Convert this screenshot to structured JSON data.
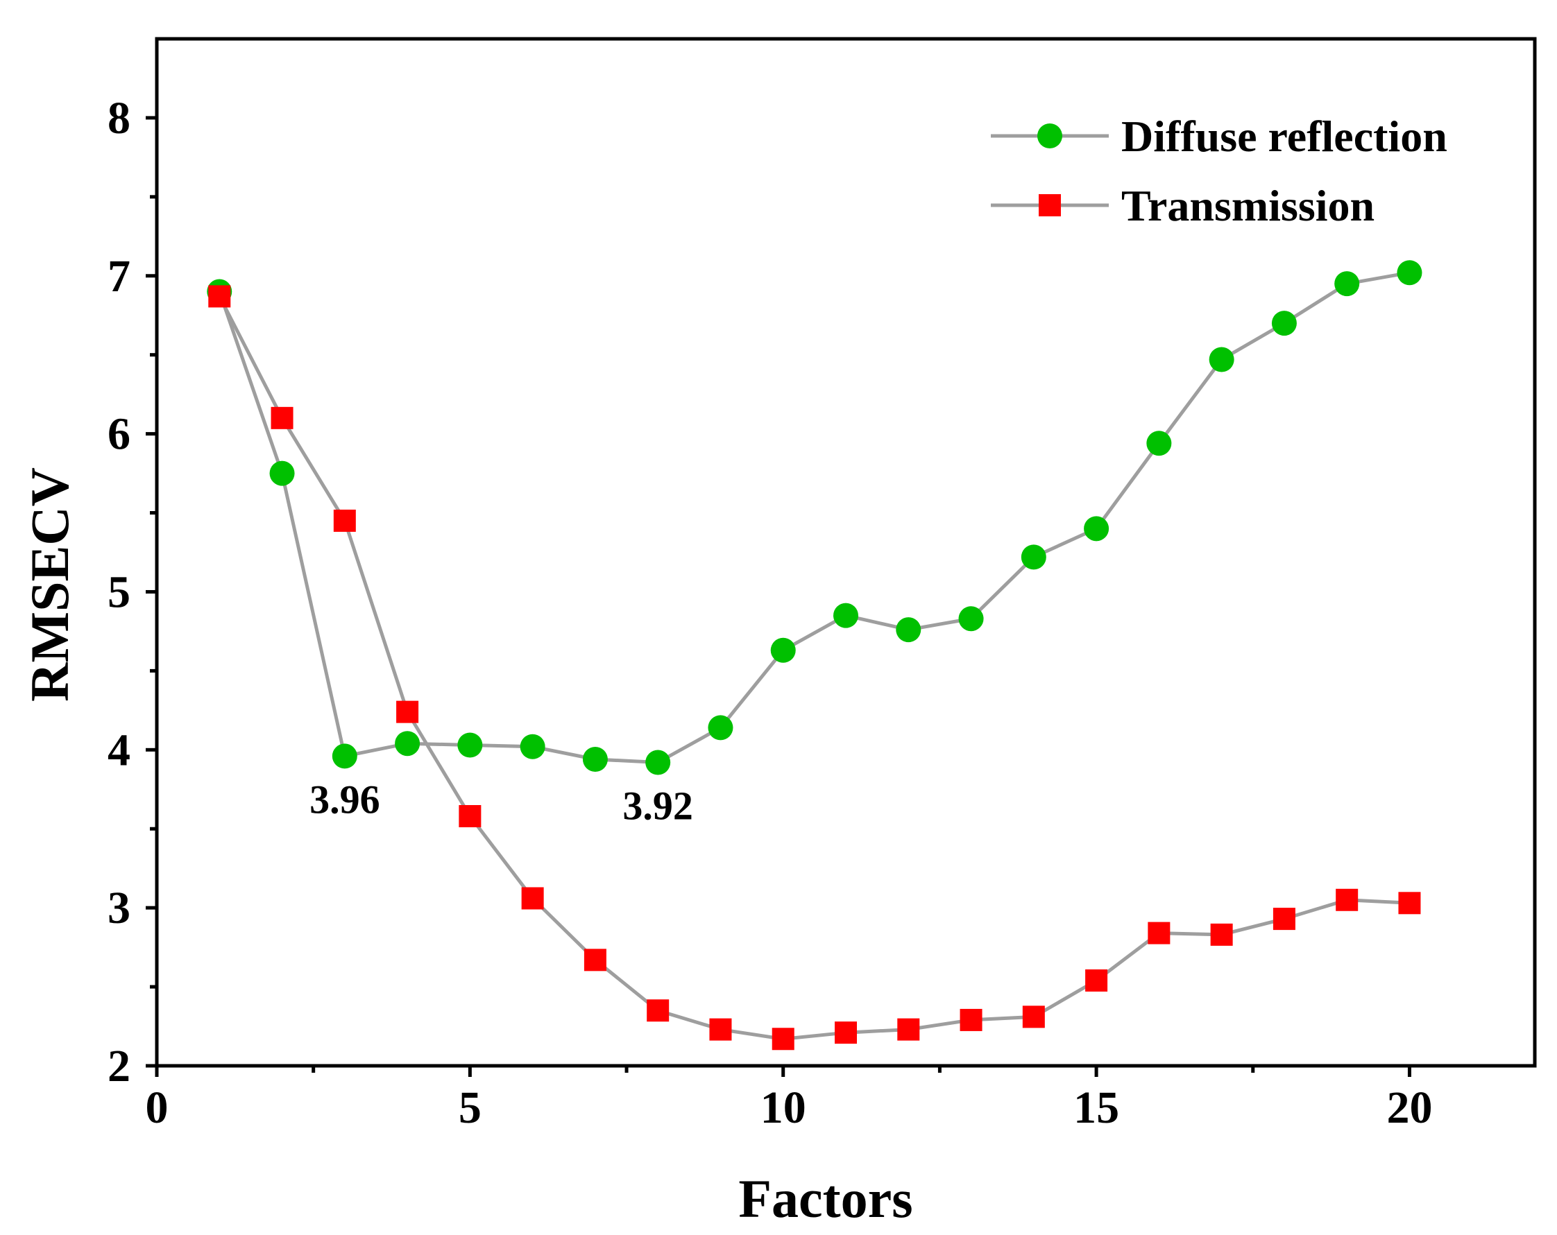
{
  "chart_data": {
    "type": "line",
    "title": "",
    "xlabel": "Factors",
    "ylabel": "RMSECV",
    "xlim": [
      0,
      22
    ],
    "ylim": [
      2,
      8.5
    ],
    "x_ticks_major": [
      0,
      5,
      10,
      15,
      20
    ],
    "x_ticks_minor": [
      2.5,
      7.5,
      12.5,
      17.5
    ],
    "y_ticks_major": [
      2,
      3,
      4,
      5,
      6,
      7,
      8
    ],
    "y_ticks_minor": [
      2.5,
      3.5,
      4.5,
      5.5,
      6.5,
      7.5
    ],
    "grid": false,
    "legend_position": "top-right",
    "x": [
      1,
      2,
      3,
      4,
      5,
      6,
      7,
      8,
      9,
      10,
      11,
      12,
      13,
      14,
      15,
      16,
      17,
      18,
      19,
      20
    ],
    "series": [
      {
        "name": "Diffuse reflection",
        "marker": "circle",
        "color": "#00c000",
        "line_color": "#9e9e9e",
        "values": [
          6.9,
          5.75,
          3.96,
          4.04,
          4.03,
          4.02,
          3.94,
          3.92,
          4.14,
          4.63,
          4.85,
          4.76,
          4.83,
          5.22,
          5.4,
          5.94,
          6.47,
          6.7,
          6.95,
          7.02
        ]
      },
      {
        "name": "Transmission",
        "marker": "square",
        "color": "#ff0000",
        "line_color": "#9e9e9e",
        "values": [
          6.87,
          6.1,
          5.45,
          4.24,
          3.58,
          3.06,
          2.67,
          2.35,
          2.23,
          2.17,
          2.21,
          2.23,
          2.29,
          2.31,
          2.54,
          2.84,
          2.83,
          2.93,
          3.05,
          3.03
        ]
      }
    ],
    "annotations": [
      {
        "text": "3.96",
        "x": 3,
        "y": 3.96,
        "series": "Diffuse reflection"
      },
      {
        "text": "3.92",
        "x": 8,
        "y": 3.92,
        "series": "Diffuse reflection"
      }
    ]
  }
}
